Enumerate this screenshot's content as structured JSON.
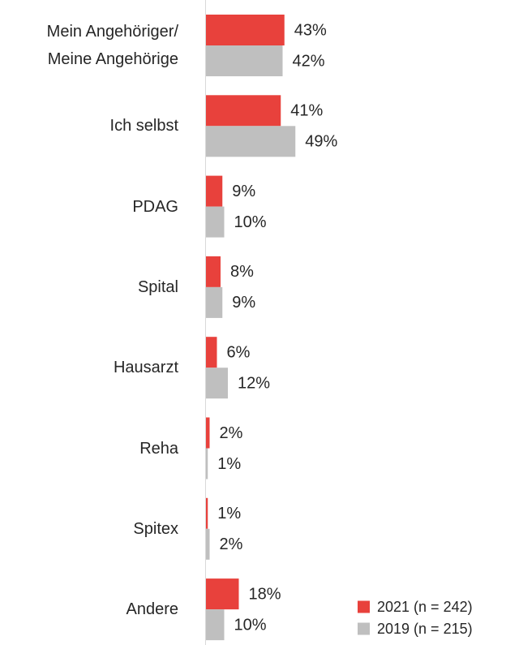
{
  "chart_data": {
    "type": "bar",
    "orientation": "horizontal",
    "categories": [
      "Mein Angehöriger/\nMeine Angehörige",
      "Ich selbst",
      "PDAG",
      "Spital",
      "Hausarzt",
      "Reha",
      "Spitex",
      "Andere"
    ],
    "series": [
      {
        "name": "2021 (n = 242)",
        "color": "#e8413c",
        "values": [
          43,
          41,
          9,
          8,
          6,
          2,
          1,
          18
        ],
        "value_labels": [
          "43%",
          "41%",
          "9%",
          "8%",
          "6%",
          "2%",
          "1%",
          "18%"
        ]
      },
      {
        "name": "2019 (n = 215)",
        "color": "#bfbfbf",
        "values": [
          42,
          49,
          10,
          9,
          12,
          1,
          2,
          10
        ],
        "value_labels": [
          "42%",
          "49%",
          "10%",
          "9%",
          "12%",
          "1%",
          "2%",
          "10%"
        ]
      }
    ],
    "legend": "bottom-right"
  }
}
